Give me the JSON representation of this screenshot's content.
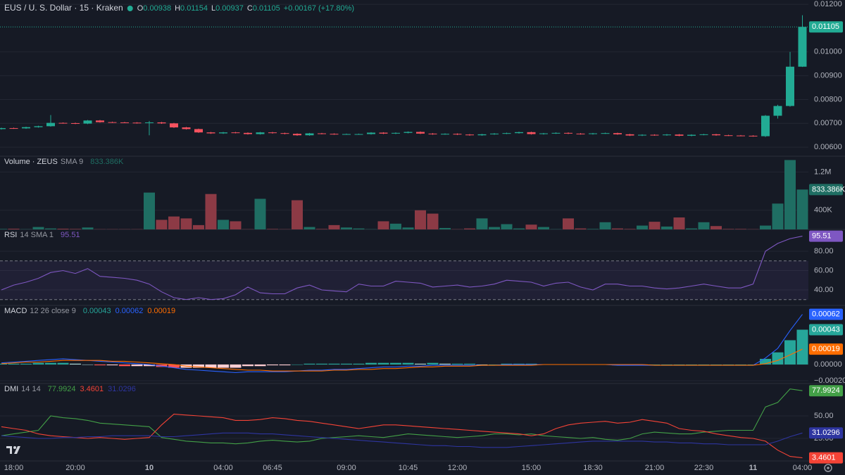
{
  "chart_data": [
    {
      "type": "candlestick",
      "title": "EUS / U. S. Dollar · 15 · Kraken",
      "ohlc_labels": [
        "O",
        "H",
        "L",
        "C"
      ],
      "change": "+0.00167 (+17.80%)",
      "categories": [
        null,
        "18:00",
        null,
        null,
        null,
        null,
        "20:00",
        null,
        null,
        null,
        null,
        null,
        "10",
        null,
        null,
        null,
        null,
        null,
        "04:00",
        null,
        null,
        null,
        "06:45",
        null,
        null,
        null,
        null,
        null,
        "09:00",
        null,
        null,
        null,
        null,
        "10:45",
        null,
        null,
        null,
        "12:00",
        null,
        null,
        null,
        null,
        null,
        "15:00",
        null,
        null,
        null,
        null,
        "18:30",
        null,
        null,
        null,
        null,
        "21:00",
        null,
        null,
        null,
        "22:30",
        null,
        null,
        null,
        "11",
        null,
        null,
        null,
        "04:00"
      ],
      "open": [
        0.00676,
        0.0068,
        0.00679,
        0.00684,
        0.00688,
        0.00702,
        0.00701,
        0.00699,
        0.00712,
        0.00705,
        0.00704,
        0.00703,
        0.00701,
        0.00704,
        0.007,
        0.00683,
        0.00676,
        0.00662,
        0.00658,
        0.00662,
        0.0066,
        0.00655,
        0.00662,
        0.00659,
        0.00656,
        0.0065,
        0.00658,
        0.00656,
        0.00654,
        0.00655,
        0.00655,
        0.00661,
        0.00657,
        0.0066,
        0.00664,
        0.00657,
        0.00654,
        0.00656,
        0.00653,
        0.0065,
        0.00654,
        0.00657,
        0.00659,
        0.00663,
        0.00655,
        0.00658,
        0.0066,
        0.00657,
        0.00655,
        0.00658,
        0.00659,
        0.00654,
        0.00649,
        0.00652,
        0.0065,
        0.00653,
        0.00648,
        0.00652,
        0.00654,
        0.0065,
        0.00649,
        0.00648,
        0.00646,
        0.00732,
        0.00773,
        0.00938
      ],
      "high": [
        0.00682,
        0.00682,
        0.00686,
        0.0069,
        0.00735,
        0.00704,
        0.00703,
        0.00714,
        0.00714,
        0.00707,
        0.00706,
        0.00705,
        0.0071,
        0.00706,
        0.00702,
        0.00685,
        0.00678,
        0.00664,
        0.00664,
        0.00664,
        0.00662,
        0.00664,
        0.00664,
        0.00661,
        0.00658,
        0.0066,
        0.0066,
        0.00658,
        0.00657,
        0.00657,
        0.00663,
        0.00663,
        0.00662,
        0.00666,
        0.00666,
        0.00659,
        0.00658,
        0.00658,
        0.00655,
        0.00656,
        0.00659,
        0.00661,
        0.00665,
        0.00665,
        0.0066,
        0.00662,
        0.00662,
        0.00659,
        0.0066,
        0.00661,
        0.00661,
        0.00656,
        0.00654,
        0.00654,
        0.00655,
        0.00655,
        0.00654,
        0.00656,
        0.00656,
        0.00652,
        0.00651,
        0.0065,
        0.00735,
        0.00778,
        0.01,
        0.01154
      ],
      "low": [
        0.00674,
        0.00677,
        0.00677,
        0.00682,
        0.00686,
        0.00699,
        0.00697,
        0.00697,
        0.00703,
        0.00702,
        0.00701,
        0.00699,
        0.0065,
        0.00698,
        0.00681,
        0.00674,
        0.0066,
        0.00656,
        0.00656,
        0.00658,
        0.00653,
        0.00653,
        0.00657,
        0.00654,
        0.00648,
        0.00648,
        0.00654,
        0.00652,
        0.00652,
        0.00653,
        0.00653,
        0.00655,
        0.00655,
        0.00658,
        0.00655,
        0.00652,
        0.00652,
        0.00651,
        0.00648,
        0.00648,
        0.00652,
        0.00655,
        0.00657,
        0.00653,
        0.00653,
        0.00656,
        0.00655,
        0.00653,
        0.00653,
        0.00656,
        0.00652,
        0.00647,
        0.00647,
        0.00648,
        0.00648,
        0.00646,
        0.00646,
        0.0065,
        0.00648,
        0.00647,
        0.00646,
        0.00644,
        0.00643,
        0.0072,
        0.0077,
        0.00937
      ],
      "close": [
        0.0068,
        0.00679,
        0.00684,
        0.00688,
        0.00702,
        0.00701,
        0.00699,
        0.00712,
        0.00705,
        0.00704,
        0.00703,
        0.00701,
        0.00704,
        0.007,
        0.00683,
        0.00676,
        0.00662,
        0.00658,
        0.00662,
        0.0066,
        0.00655,
        0.00662,
        0.00659,
        0.00656,
        0.0065,
        0.00658,
        0.00656,
        0.00654,
        0.00655,
        0.00655,
        0.00661,
        0.00657,
        0.0066,
        0.00664,
        0.00657,
        0.00654,
        0.00656,
        0.00653,
        0.0065,
        0.00654,
        0.00657,
        0.00659,
        0.00663,
        0.00655,
        0.00658,
        0.0066,
        0.00657,
        0.00655,
        0.00658,
        0.00659,
        0.00654,
        0.00649,
        0.00652,
        0.0065,
        0.00653,
        0.00648,
        0.00652,
        0.00654,
        0.0065,
        0.00649,
        0.00648,
        0.00646,
        0.00732,
        0.00773,
        0.00938,
        0.01105
      ],
      "up_color": "#22ab94",
      "down_color": "#f7525f",
      "ylim": [
        0.00562,
        0.01218
      ],
      "yticks": [
        {
          "value": 0.006,
          "label": "0.00600"
        },
        {
          "value": 0.007,
          "label": "0.00700"
        },
        {
          "value": 0.008,
          "label": "0.00800"
        },
        {
          "value": 0.009,
          "label": "0.00900"
        },
        {
          "value": 0.01,
          "label": "0.01000"
        },
        {
          "value": 0.012,
          "label": "0.01200"
        }
      ]
    },
    {
      "type": "volume",
      "title": "Volume · ZEUS",
      "subtitle": "SMA 9",
      "values": [
        10000,
        15000,
        5000,
        50000,
        20000,
        15000,
        10000,
        40000,
        5000,
        5000,
        5000,
        5000,
        770000,
        200000,
        270000,
        230000,
        90000,
        740000,
        200000,
        170000,
        5000,
        640000,
        10000,
        5000,
        610000,
        50000,
        10000,
        90000,
        40000,
        20000,
        5000,
        170000,
        120000,
        40000,
        400000,
        330000,
        30000,
        5000,
        20000,
        230000,
        50000,
        110000,
        20000,
        100000,
        50000,
        5000,
        230000,
        20000,
        10000,
        150000,
        20000,
        10000,
        80000,
        160000,
        60000,
        250000,
        20000,
        150000,
        70000,
        10000,
        10000,
        5000,
        80000,
        540000,
        1450000,
        833386
      ],
      "value_labels": [
        null,
        null,
        null,
        null,
        null,
        null,
        null,
        null,
        null,
        null,
        null,
        null,
        null,
        null,
        null,
        null,
        null,
        null,
        null,
        null,
        null,
        null,
        null,
        null,
        null,
        null,
        null,
        null,
        null,
        null,
        null,
        null,
        null,
        null,
        null,
        null,
        null,
        null,
        null,
        null,
        null,
        null,
        null,
        null,
        null,
        null,
        null,
        null,
        null,
        null,
        null,
        null,
        null,
        null,
        null,
        null,
        null,
        null,
        null,
        null,
        null,
        null,
        null,
        null,
        null,
        "833.386K"
      ],
      "up_color": "#1f6e63",
      "down_color": "#8c3a45",
      "ylim": [
        0,
        1530000
      ],
      "yticks": [
        {
          "value": 400000,
          "label": "400K"
        },
        {
          "value": 1200000,
          "label": "1.2M"
        }
      ]
    },
    {
      "type": "line",
      "title": "RSI",
      "subtitle": "14 SMA 1",
      "series": [
        {
          "color": "#7e57c2",
          "values": [
            40,
            45,
            48,
            52,
            58,
            60,
            57,
            62,
            54,
            53,
            52,
            50,
            46,
            38,
            32,
            30,
            32,
            30,
            31,
            35,
            43,
            37,
            36,
            36,
            42,
            45,
            40,
            39,
            38,
            46,
            44,
            44,
            49,
            48,
            47,
            43,
            44,
            45,
            43,
            44,
            46,
            50,
            49,
            48,
            44,
            47,
            48,
            43,
            40,
            46,
            46,
            44,
            44,
            42,
            41,
            42,
            44,
            46,
            44,
            42,
            42,
            46,
            80,
            88,
            93,
            95.51
          ]
        }
      ],
      "band": [
        30,
        70
      ],
      "ylim": [
        24,
        102.5
      ],
      "yticks": [
        {
          "value": 40,
          "label": "40.00"
        },
        {
          "value": 60,
          "label": "60.00"
        },
        {
          "value": 80,
          "label": "80.00"
        }
      ]
    },
    {
      "type": "macd",
      "title": "MACD",
      "subtitle": "12 26 close 9",
      "histogram": {
        "colors": [
          "#26a69a",
          "#b2dfdb",
          "#ff5252",
          "#ffcdd2"
        ],
        "values": [
          1e-05,
          1e-05,
          1e-05,
          2e-05,
          2e-05,
          2e-05,
          1e-05,
          0,
          -1e-05,
          -1e-05,
          -2e-05,
          -2e-05,
          -2e-05,
          -3e-05,
          -4e-05,
          -4e-05,
          -4e-05,
          -4e-05,
          -4e-05,
          -4e-05,
          -2e-05,
          -2e-05,
          -1e-05,
          -1e-05,
          0,
          1e-05,
          1e-05,
          1e-05,
          1e-05,
          1e-05,
          2e-05,
          2e-05,
          2e-05,
          2e-05,
          1e-05,
          2e-05,
          1e-05,
          1e-05,
          1e-05,
          0,
          0,
          1e-05,
          1e-05,
          1e-05,
          0,
          0,
          0,
          0,
          0,
          0,
          -1e-05,
          -1e-05,
          -1e-05,
          0,
          0,
          0,
          0,
          0,
          0,
          0,
          0,
          0,
          7e-05,
          0.00015,
          0.0003,
          0.00043
        ]
      },
      "series": [
        {
          "color": "#2962ff",
          "values": [
            2e-05,
            3e-05,
            4e-05,
            5e-05,
            6e-05,
            7e-05,
            6e-05,
            5e-05,
            4e-05,
            3e-05,
            2e-05,
            1e-05,
            0,
            -2e-05,
            -4e-05,
            -6e-05,
            -7e-05,
            -8e-05,
            -9e-05,
            -0.0001,
            -9e-05,
            -9e-05,
            -9e-05,
            -9e-05,
            -8e-05,
            -7e-05,
            -7e-05,
            -6e-05,
            -6e-05,
            -5e-05,
            -4e-05,
            -3e-05,
            -3e-05,
            -2e-05,
            -2e-05,
            -1e-05,
            -1e-05,
            -1e-05,
            -1e-05,
            -1e-05,
            -1e-05,
            0,
            0,
            0,
            0,
            0,
            0,
            0,
            0,
            0,
            -1e-05,
            -1e-05,
            -1e-05,
            -1e-05,
            -1e-05,
            -1e-05,
            -1e-05,
            -1e-05,
            -1e-05,
            -1e-05,
            -1e-05,
            -1e-05,
            8e-05,
            0.0002,
            0.00042,
            0.00062
          ]
        },
        {
          "color": "#ff6d00",
          "values": [
            1e-05,
            2e-05,
            3e-05,
            3e-05,
            4e-05,
            5e-05,
            5e-05,
            5e-05,
            5e-05,
            4e-05,
            4e-05,
            3e-05,
            2e-05,
            1e-05,
            0,
            -2e-05,
            -3e-05,
            -4e-05,
            -5e-05,
            -6e-05,
            -7e-05,
            -7e-05,
            -8e-05,
            -8e-05,
            -8e-05,
            -8e-05,
            -8e-05,
            -7e-05,
            -7e-05,
            -6e-05,
            -6e-05,
            -5e-05,
            -5e-05,
            -4e-05,
            -3e-05,
            -3e-05,
            -2e-05,
            -2e-05,
            -2e-05,
            -1e-05,
            -1e-05,
            -1e-05,
            -1e-05,
            -1e-05,
            0,
            0,
            0,
            0,
            0,
            0,
            0,
            0,
            0,
            -1e-05,
            -1e-05,
            -1e-05,
            -1e-05,
            -1e-05,
            -1e-05,
            -1e-05,
            -1e-05,
            -1e-05,
            1e-05,
            5e-05,
            0.00012,
            0.00019
          ]
        }
      ],
      "ylim": [
        -0.000235,
        0.00073
      ],
      "yticks": [
        {
          "value": -0.0002,
          "label": "−0.00020"
        },
        {
          "value": 0,
          "label": "0.00000"
        }
      ]
    },
    {
      "type": "line",
      "title": "DMI",
      "subtitle": "14 14",
      "series": [
        {
          "color": "#43a047",
          "values": [
            28,
            30,
            32,
            34,
            50,
            48,
            47,
            45,
            42,
            41,
            40,
            39,
            38,
            26,
            24,
            22,
            21,
            20,
            20,
            19,
            20,
            22,
            23,
            22,
            21,
            22,
            25,
            26,
            27,
            28,
            27,
            26,
            28,
            30,
            29,
            28,
            27,
            26,
            27,
            28,
            30,
            30,
            29,
            30,
            28,
            27,
            26,
            25,
            26,
            24,
            23,
            25,
            30,
            32,
            31,
            30,
            30,
            32,
            33,
            34,
            34,
            34,
            60,
            65,
            80,
            77.9924
          ]
        },
        {
          "color": "#f44336",
          "values": [
            38,
            36,
            34,
            30,
            28,
            27,
            26,
            25,
            26,
            25,
            24,
            25,
            26,
            40,
            52,
            51,
            50,
            49,
            48,
            45,
            45,
            46,
            48,
            47,
            45,
            44,
            42,
            40,
            38,
            36,
            38,
            40,
            40,
            39,
            38,
            37,
            36,
            35,
            34,
            33,
            32,
            31,
            30,
            28,
            30,
            36,
            40,
            42,
            43,
            44,
            42,
            43,
            46,
            44,
            42,
            36,
            34,
            33,
            30,
            28,
            26,
            25,
            22,
            12,
            5,
            3.4601
          ]
        },
        {
          "color": "#2e35a0",
          "values": [
            28,
            27,
            26,
            25,
            25,
            26,
            26,
            27,
            27,
            28,
            28,
            28,
            28,
            27,
            27,
            28,
            29,
            30,
            31,
            31,
            31,
            30,
            30,
            29,
            28,
            27,
            26,
            25,
            24,
            23,
            22,
            21,
            20,
            19,
            18,
            17,
            17,
            16,
            16,
            15,
            15,
            15,
            16,
            17,
            18,
            19,
            20,
            21,
            22,
            22,
            22,
            22,
            22,
            21,
            21,
            20,
            20,
            19,
            19,
            18,
            18,
            18,
            18,
            22,
            27,
            31.0296
          ]
        }
      ],
      "ylim": [
        0,
        86
      ],
      "yticks": [
        {
          "value": 25,
          "label": "25.00"
        },
        {
          "value": 50,
          "label": "50.00"
        }
      ]
    }
  ]
}
